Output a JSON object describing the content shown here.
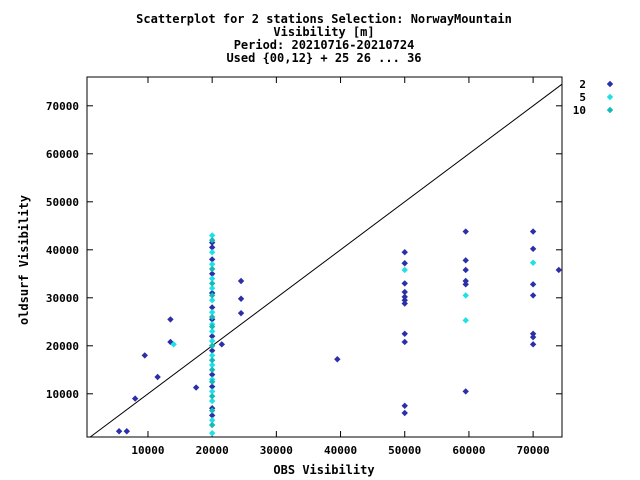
{
  "chart_data": {
    "type": "scatter",
    "title_lines": [
      "Scatterplot for    2 stations Selection: NorwayMountain",
      "Visibility [m]",
      "Period: 20210716-20210724",
      "Used {00,12} + 25 26 ... 36"
    ],
    "xlabel": "OBS Visibility",
    "ylabel": "oldsurf Visibility",
    "xlim": [
      500,
      74500
    ],
    "ylim": [
      1000,
      76000
    ],
    "x_ticks": [
      10000,
      20000,
      30000,
      40000,
      50000,
      60000,
      70000
    ],
    "y_ticks": [
      10000,
      20000,
      30000,
      40000,
      50000,
      60000,
      70000
    ],
    "diagonal_line": true,
    "grid": false,
    "legend_position": "right-outside-top",
    "series": [
      {
        "name": "2",
        "color": "#2b2fa8",
        "points": [
          [
            5500,
            2200
          ],
          [
            6700,
            2200
          ],
          [
            8000,
            9000
          ],
          [
            9500,
            18000
          ],
          [
            11500,
            13500
          ],
          [
            13500,
            25500
          ],
          [
            13500,
            20800
          ],
          [
            17500,
            11300
          ],
          [
            21500,
            20300
          ],
          [
            24500,
            33500
          ],
          [
            24500,
            29800
          ],
          [
            24500,
            26800
          ],
          [
            39500,
            17200
          ],
          [
            20000,
            41500
          ],
          [
            20000,
            40500
          ],
          [
            20000,
            38000
          ],
          [
            20000,
            35000
          ],
          [
            20000,
            31000
          ],
          [
            20000,
            28000
          ],
          [
            20000,
            25500
          ],
          [
            20000,
            22000
          ],
          [
            20000,
            19000
          ],
          [
            20000,
            14000
          ],
          [
            20000,
            11500
          ],
          [
            20000,
            7000
          ],
          [
            20000,
            5500
          ],
          [
            50000,
            39500
          ],
          [
            50000,
            37200
          ],
          [
            50000,
            33000
          ],
          [
            50000,
            31200
          ],
          [
            50000,
            30200
          ],
          [
            50000,
            29500
          ],
          [
            50000,
            28800
          ],
          [
            50000,
            22500
          ],
          [
            50000,
            20800
          ],
          [
            50000,
            7500
          ],
          [
            50000,
            6000
          ],
          [
            59500,
            43800
          ],
          [
            59500,
            37800
          ],
          [
            59500,
            35800
          ],
          [
            59500,
            33500
          ],
          [
            59500,
            32800
          ],
          [
            59500,
            10500
          ],
          [
            70000,
            43800
          ],
          [
            70000,
            40200
          ],
          [
            70000,
            32800
          ],
          [
            70000,
            30500
          ],
          [
            70000,
            22500
          ],
          [
            70000,
            21800
          ],
          [
            70000,
            20300
          ],
          [
            74000,
            35800
          ]
        ]
      },
      {
        "name": "5",
        "color": "#1ee0e6",
        "points": [
          [
            14000,
            20300
          ],
          [
            50000,
            35800
          ],
          [
            59500,
            30500
          ],
          [
            59500,
            25300
          ],
          [
            70000,
            37300
          ],
          [
            20000,
            43000
          ],
          [
            20000,
            39500
          ],
          [
            20000,
            37000
          ],
          [
            20000,
            34000
          ],
          [
            20000,
            32000
          ],
          [
            20000,
            29500
          ],
          [
            20000,
            27000
          ],
          [
            20000,
            24500
          ],
          [
            20000,
            23000
          ],
          [
            20000,
            21000
          ],
          [
            20000,
            18000
          ],
          [
            20000,
            16000
          ],
          [
            20000,
            13000
          ],
          [
            20000,
            10500
          ],
          [
            20000,
            8500
          ],
          [
            20000,
            4500
          ],
          [
            20000,
            1800
          ]
        ]
      },
      {
        "name": "10",
        "color": "#17b8b8",
        "points": [
          [
            20000,
            42000
          ],
          [
            20000,
            36000
          ],
          [
            20000,
            33000
          ],
          [
            20000,
            30500
          ],
          [
            20000,
            26000
          ],
          [
            20000,
            24000
          ],
          [
            20000,
            20000
          ],
          [
            20000,
            17000
          ],
          [
            20000,
            15000
          ],
          [
            20000,
            12500
          ],
          [
            20000,
            9500
          ],
          [
            20000,
            6500
          ],
          [
            20000,
            3500
          ]
        ]
      }
    ]
  }
}
